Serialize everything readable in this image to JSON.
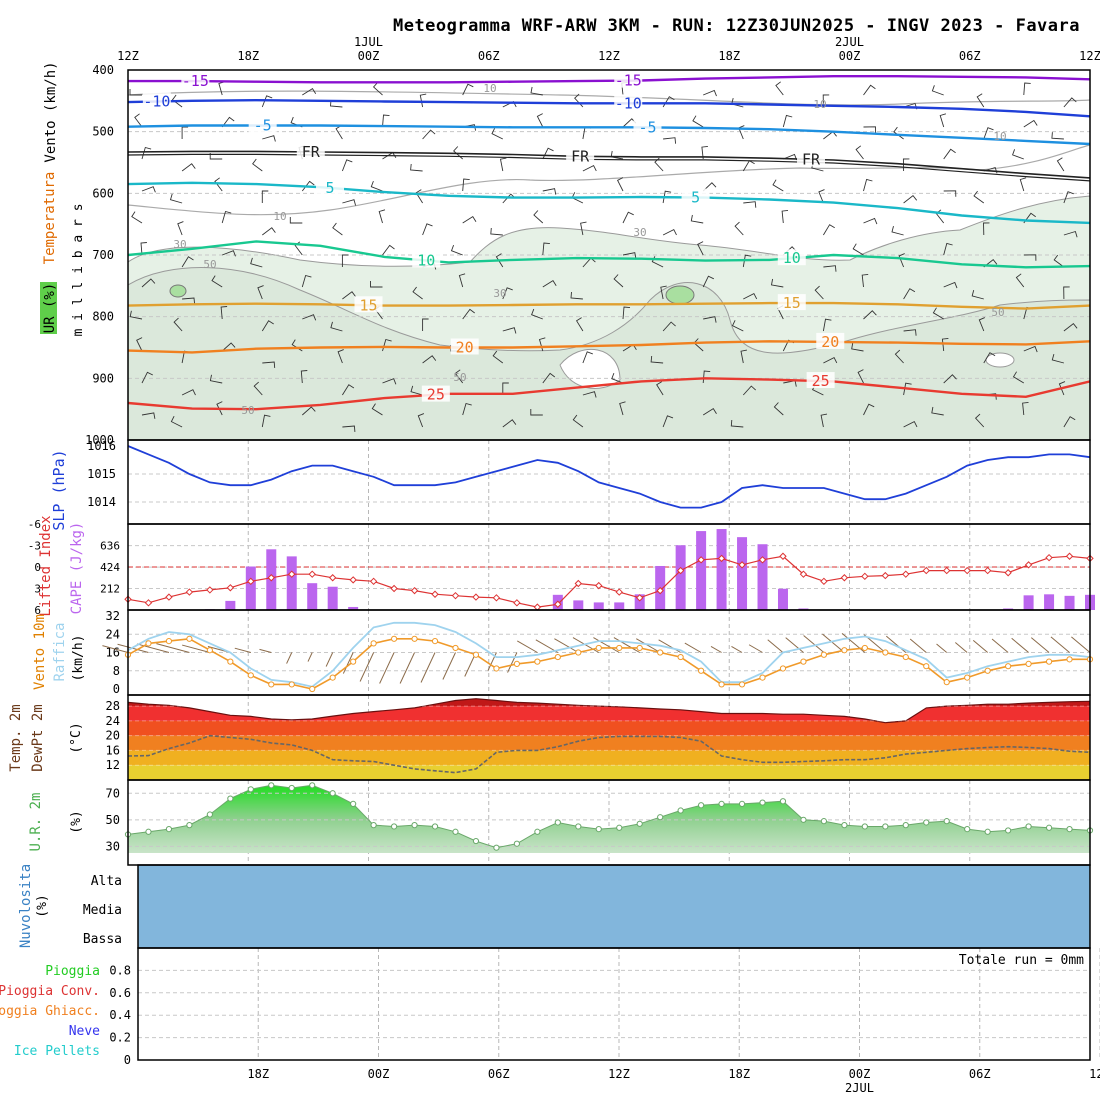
{
  "title": "Meteogramma WRF-ARW 3KM - RUN: 12Z30JUN2025 - INGV 2023 - Favara",
  "time_axis": {
    "labels": [
      "12Z",
      "18Z",
      "00Z",
      "06Z",
      "12Z",
      "18Z",
      "00Z",
      "06Z",
      "12Z"
    ],
    "date_labels": [
      "1JUL",
      "2JUL"
    ]
  },
  "panel_labels": {
    "vento": "Vento (km/h)",
    "temperatura": "Temperatura",
    "ur": "UR (%)",
    "millibars": "m i l l i b a r s",
    "slp": "SLP (hPa)",
    "lifted": "Lifted Index",
    "cape": "CAPE (J/kg)",
    "vento10m": "Vento 10m",
    "raffica": "Raffica",
    "kmh": "(km/h)",
    "temp2m": "Temp. 2m",
    "dewpt2m": "DewPt 2m",
    "degc": "(°C)",
    "ur2m": "U.R. 2m",
    "pct": "(%)",
    "nuvolosita": "Nuvolosita",
    "cloud_levels": [
      "Alta",
      "Media",
      "Bassa"
    ],
    "precip_legend": [
      "Pioggia",
      "Pioggia Conv.",
      "Pioggia Ghiacc.",
      "Neve",
      "Ice Pellets"
    ],
    "totale_run": "Totale run = 0mm"
  },
  "colors": {
    "slp": "#1f3fd8",
    "cape": "#bb66ee",
    "lifted": "#dd3333",
    "wind": "#f09a2a",
    "gust": "#9fd3ee",
    "rh": "#5fcf4a",
    "cloud": "#82b6dc",
    "temp_dark": "#aa1010",
    "dew": "#666666",
    "iso_m15": "#8a10d0",
    "iso_m10": "#1f3fd8",
    "iso_m5": "#1e90e0",
    "iso_5": "#1ab8c8",
    "iso_10": "#18c890",
    "iso_15": "#e0a030",
    "iso_20": "#f08020",
    "iso_25": "#e83a30"
  },
  "chart_data": [
    {
      "type": "line",
      "name": "profile",
      "ylabel": "m i l l i b a r s",
      "y_ticks": [
        400,
        500,
        600,
        700,
        800,
        900,
        1000
      ],
      "isotherm_labels": [
        "-15",
        "-10",
        "-5",
        "FR",
        "5",
        "10",
        "15",
        "20",
        "25"
      ],
      "rh_labels": [
        "10",
        "30",
        "50"
      ],
      "isotherms": [
        {
          "name": "-15",
          "pressure": [
            418,
            418,
            419,
            420,
            420,
            420,
            419,
            418,
            417,
            414,
            412,
            410,
            410,
            411,
            412,
            415
          ]
        },
        {
          "name": "-10",
          "pressure": [
            452,
            450,
            449,
            450,
            451,
            452,
            453,
            454,
            454,
            454,
            456,
            458,
            460,
            463,
            468,
            475
          ]
        },
        {
          "name": "-5",
          "pressure": [
            492,
            490,
            490,
            490,
            491,
            492,
            493,
            493,
            493,
            494,
            496,
            500,
            505,
            510,
            515,
            520
          ]
        },
        {
          "name": "FR",
          "pressure": [
            533,
            532,
            532,
            533,
            534,
            535,
            537,
            540,
            541,
            541,
            543,
            546,
            552,
            560,
            568,
            575
          ]
        },
        {
          "name": "5",
          "pressure": [
            585,
            583,
            585,
            590,
            598,
            604,
            607,
            607,
            606,
            607,
            610,
            615,
            624,
            636,
            644,
            648
          ]
        },
        {
          "name": "10",
          "pressure": [
            700,
            690,
            678,
            685,
            703,
            712,
            708,
            705,
            706,
            709,
            708,
            700,
            705,
            715,
            720,
            718
          ]
        },
        {
          "name": "15",
          "pressure": [
            782,
            780,
            779,
            780,
            782,
            782,
            781,
            780,
            780,
            779,
            778,
            778,
            780,
            784,
            787,
            782
          ]
        },
        {
          "name": "20",
          "pressure": [
            855,
            858,
            852,
            850,
            849,
            850,
            850,
            848,
            846,
            842,
            840,
            841,
            842,
            844,
            845,
            840
          ]
        },
        {
          "name": "25",
          "pressure": [
            940,
            949,
            950,
            943,
            932,
            925,
            925,
            915,
            905,
            900,
            902,
            905,
            915,
            925,
            930,
            905
          ]
        }
      ]
    },
    {
      "type": "line",
      "name": "SLP",
      "ylabel": "SLP (hPa)",
      "y_ticks": [
        1014,
        1015,
        1016
      ],
      "y_tick_labels": [
        "1014",
        "1015",
        "1016"
      ],
      "values": [
        1016.0,
        1015.7,
        1015.4,
        1015.0,
        1014.7,
        1014.6,
        1014.6,
        1014.8,
        1015.1,
        1015.3,
        1015.3,
        1015.1,
        1014.9,
        1014.6,
        1014.6,
        1014.6,
        1014.7,
        1014.9,
        1015.1,
        1015.3,
        1015.5,
        1015.4,
        1015.1,
        1014.7,
        1014.5,
        1014.3,
        1014.0,
        1013.8,
        1013.8,
        1014.0,
        1014.5,
        1014.6,
        1014.5,
        1014.5,
        1014.5,
        1014.3,
        1014.1,
        1014.1,
        1014.3,
        1014.6,
        1014.9,
        1015.3,
        1015.5,
        1015.6,
        1015.6,
        1015.7,
        1015.7,
        1015.6
      ]
    },
    {
      "type": "bar",
      "name": "CAPE",
      "ylabel": "CAPE (J/kg)",
      "y_ticks": [
        212,
        424,
        636
      ],
      "cape_values": [
        0,
        0,
        0,
        0,
        8,
        90,
        430,
        600,
        530,
        265,
        230,
        30,
        0,
        0,
        0,
        0,
        0,
        0,
        0,
        0,
        0,
        150,
        95,
        75,
        75,
        155,
        435,
        640,
        780,
        800,
        720,
        650,
        210,
        15,
        0,
        0,
        0,
        0,
        0,
        0,
        0,
        0,
        0,
        15,
        145,
        155,
        140,
        150
      ],
      "lifted_label": "Lifted Index",
      "lifted_ticks": [
        -6,
        -3,
        0,
        3,
        6
      ],
      "lifted_values": [
        4.5,
        5.0,
        4.2,
        3.5,
        3.2,
        2.9,
        2.0,
        1.5,
        1.0,
        1.0,
        1.5,
        1.8,
        2.0,
        3.0,
        3.3,
        3.8,
        4.0,
        4.2,
        4.3,
        5.0,
        5.6,
        5.2,
        2.3,
        2.6,
        3.5,
        4.3,
        3.3,
        0.5,
        -1.0,
        -1.2,
        -0.3,
        -1.0,
        -1.5,
        1.0,
        2.0,
        1.5,
        1.3,
        1.2,
        1.0,
        0.5,
        0.5,
        0.5,
        0.5,
        0.8,
        -0.3,
        -1.3,
        -1.5,
        -1.2
      ]
    },
    {
      "type": "line",
      "name": "Vento 10m",
      "ylabel": "(km/h)",
      "y_ticks": [
        0,
        8,
        16,
        24,
        32
      ],
      "y_tick_labels": [
        "0",
        "8",
        "16",
        "24",
        "32"
      ],
      "wind_values": [
        15,
        20,
        21,
        22,
        17,
        12,
        6,
        2,
        2,
        0,
        5,
        12,
        20,
        22,
        22,
        21,
        18,
        15,
        9,
        11,
        12,
        14,
        16,
        18,
        18,
        18,
        16,
        14,
        8,
        2,
        2,
        5,
        9,
        12,
        15,
        17,
        18,
        16,
        14,
        10,
        3,
        5,
        8,
        10,
        11,
        12,
        13,
        13
      ],
      "gust_values": [
        17,
        22,
        25,
        24,
        20,
        16,
        9,
        4,
        3,
        1,
        8,
        18,
        27,
        29,
        29,
        28,
        25,
        20,
        14,
        14,
        15,
        17,
        19,
        21,
        21,
        20,
        19,
        17,
        12,
        3,
        3,
        7,
        16,
        18,
        20,
        22,
        23,
        21,
        17,
        13,
        5,
        7,
        10,
        12,
        14,
        15,
        15,
        14
      ]
    },
    {
      "type": "area",
      "name": "Temp. 2m",
      "ylabel": "(°C)",
      "y_ticks": [
        12,
        16,
        20,
        24,
        28
      ],
      "temp_values": [
        29,
        28.5,
        28.2,
        27.5,
        26.5,
        25.5,
        25.2,
        24.5,
        24.3,
        24.5,
        25.3,
        26,
        26.5,
        27,
        27.5,
        28.5,
        29.5,
        30,
        29.5,
        29,
        28.8,
        28.5,
        28.2,
        28,
        27.8,
        27.5,
        27.2,
        27,
        26.5,
        26,
        26,
        26,
        25.8,
        25.8,
        25.5,
        25.2,
        24.5,
        23.5,
        24,
        27.5,
        28,
        28.2,
        28.5,
        28.5,
        28.8,
        29,
        29.2,
        29.3
      ],
      "dew_values": [
        14.5,
        14.6,
        16.5,
        18.0,
        20.0,
        19.5,
        19.0,
        18.0,
        17.5,
        16.0,
        13.5,
        13.2,
        13.0,
        12.0,
        11.0,
        10.5,
        10.0,
        11.0,
        15.5,
        16.0,
        16.0,
        17.0,
        18.5,
        19.5,
        19.8,
        19.8,
        19.8,
        19.5,
        18.5,
        14.5,
        13.5,
        12.8,
        12.8,
        13.0,
        13.2,
        13.5,
        13.5,
        14.0,
        15.0,
        15.5,
        16.0,
        16.5,
        16.8,
        17.0,
        16.8,
        16.5,
        15.8,
        15.5
      ]
    },
    {
      "type": "area",
      "name": "U.R. 2m",
      "ylabel": "(%)",
      "y_ticks": [
        30,
        50,
        70
      ],
      "rh_values": [
        39,
        41,
        43,
        46,
        54,
        66,
        73,
        76,
        74,
        76,
        70,
        62,
        46,
        45,
        46,
        45,
        41,
        34,
        29,
        32,
        41,
        48,
        45,
        43,
        44,
        47,
        52,
        57,
        61,
        62,
        62,
        63,
        64,
        50,
        49,
        46,
        45,
        45,
        46,
        48,
        49,
        43,
        41,
        42,
        45,
        44,
        43,
        42
      ]
    },
    {
      "type": "area",
      "name": "Nuvolosita",
      "levels": [
        "Alta",
        "Media",
        "Bassa"
      ],
      "cover_pct": 100
    },
    {
      "type": "bar",
      "name": "Pioggia",
      "y_ticks": [
        0,
        0.2,
        0.4,
        0.6,
        0.8
      ],
      "y_tick_labels": [
        "0",
        "0.2",
        "0.4",
        "0.6",
        "0.8"
      ],
      "values": [],
      "total": "Totale run = 0mm"
    }
  ]
}
